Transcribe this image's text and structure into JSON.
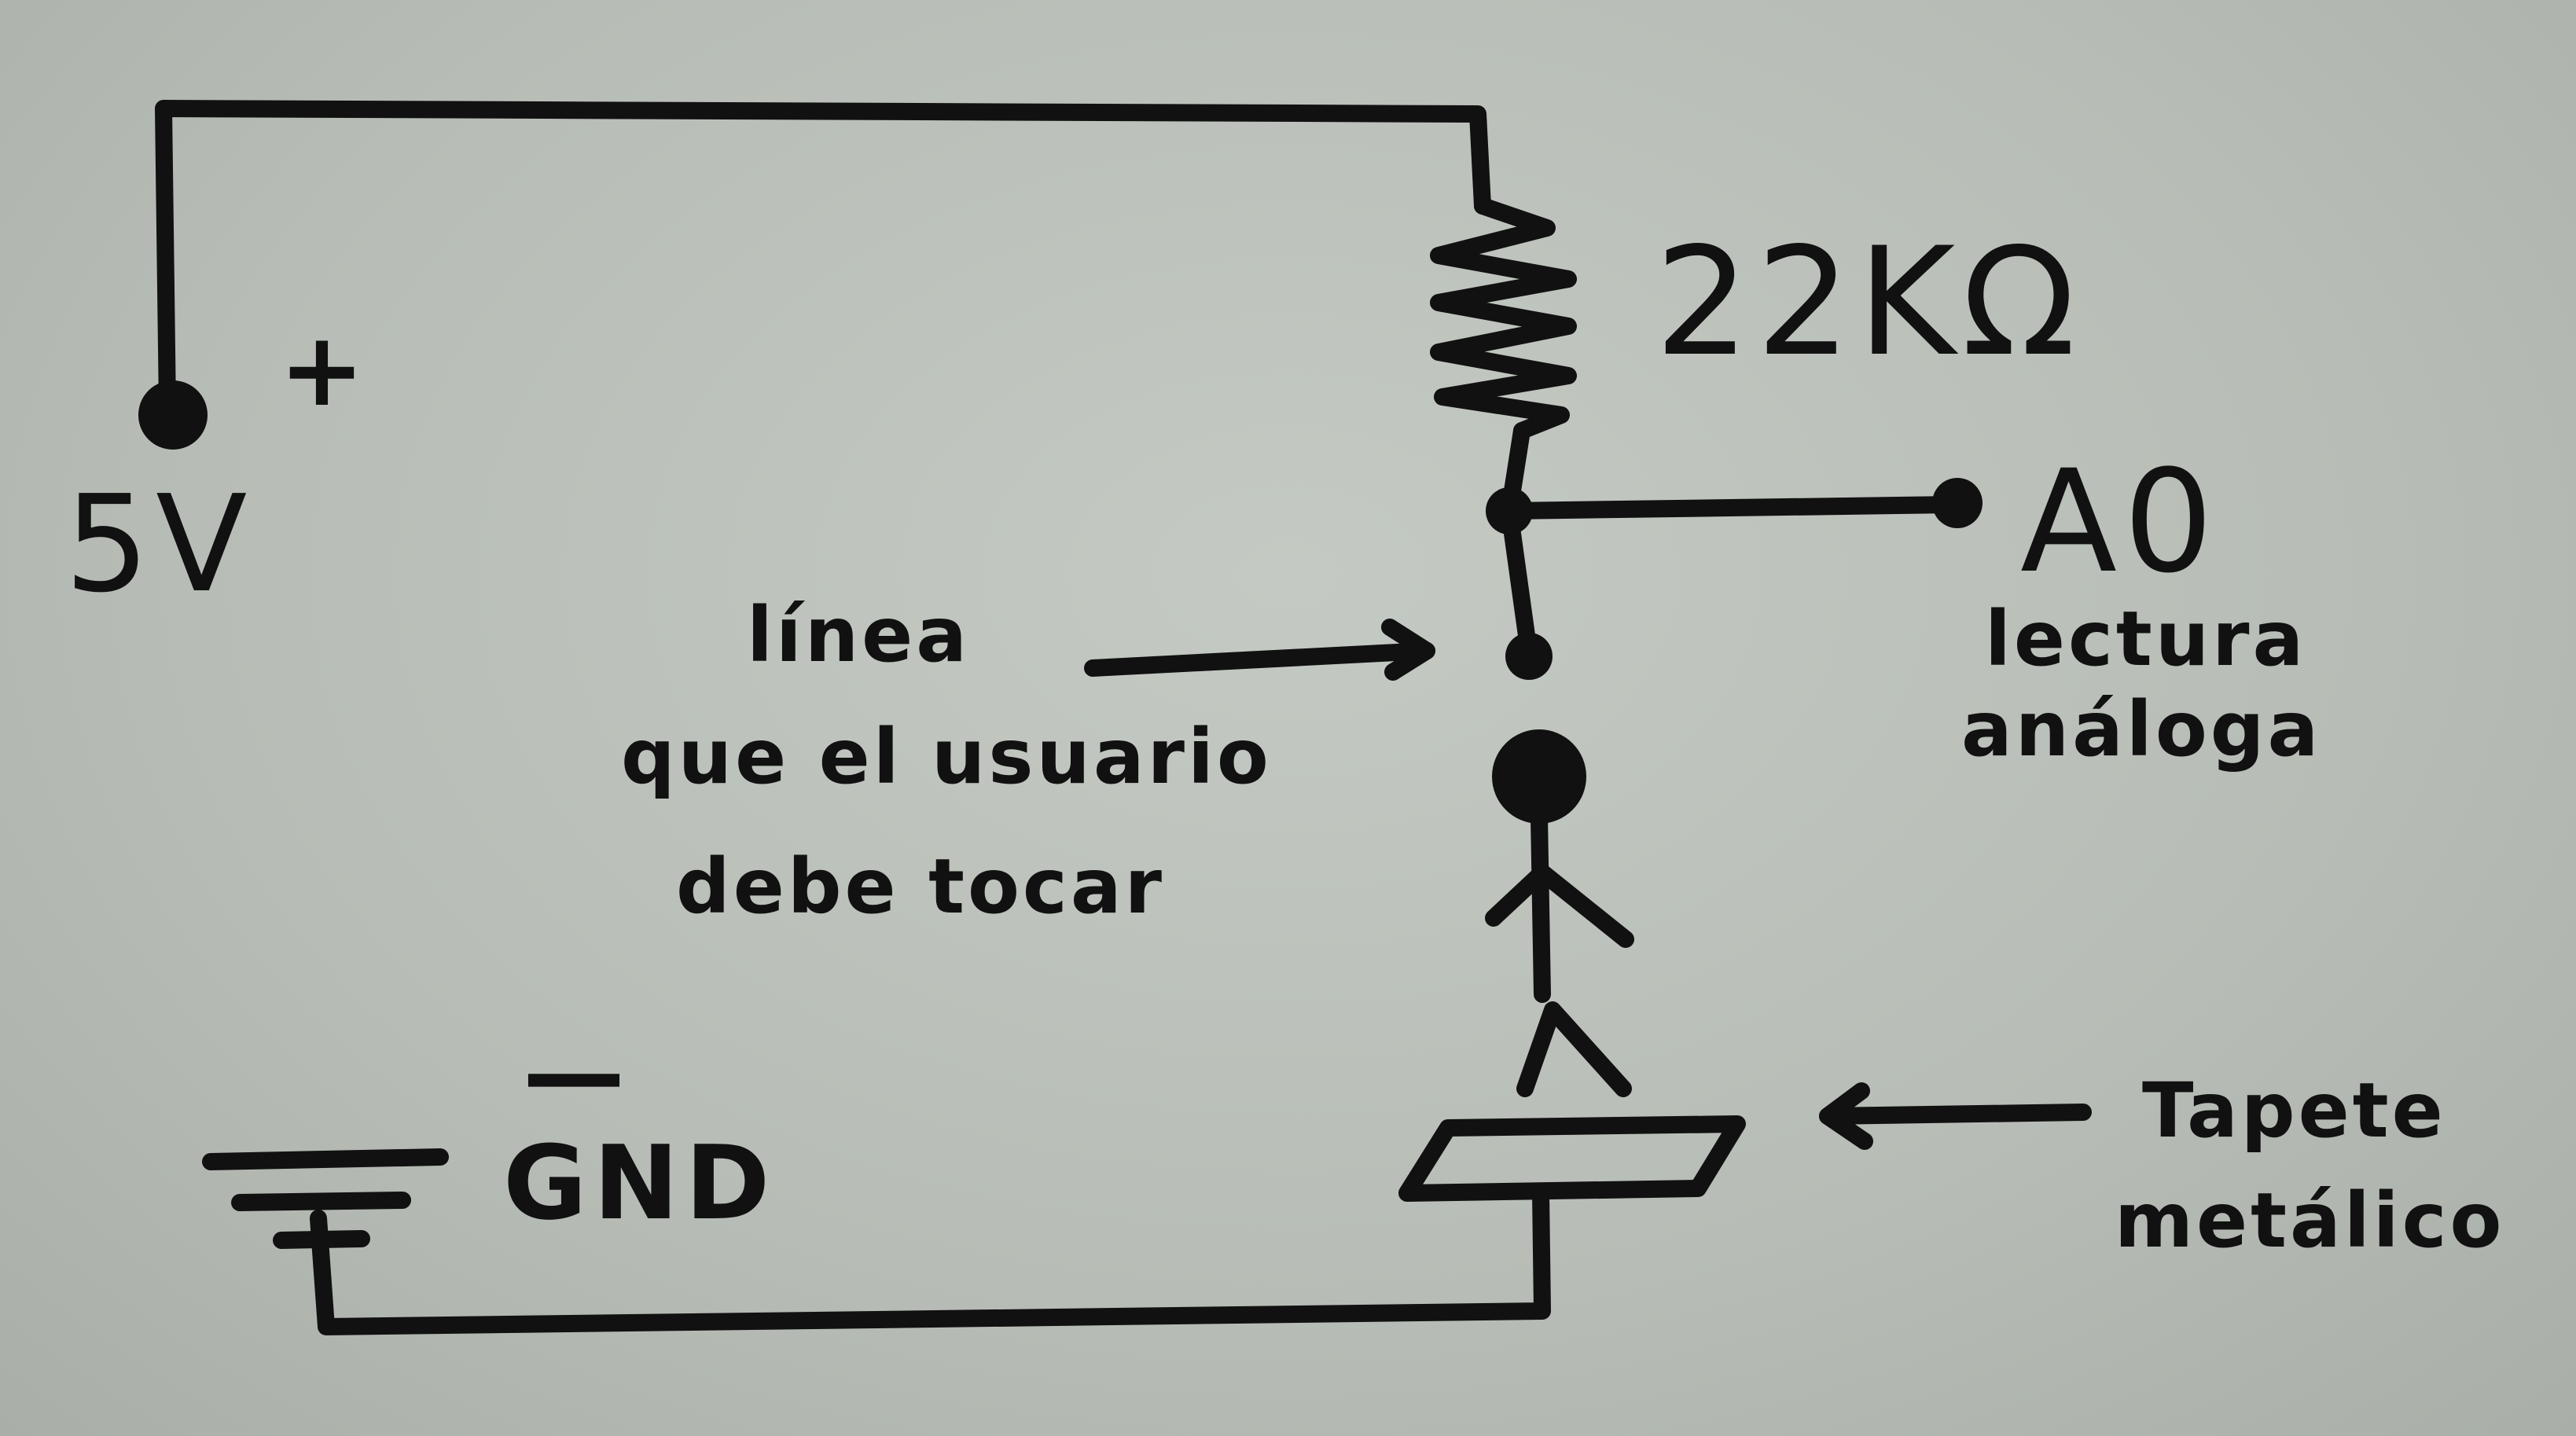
{
  "diagram": {
    "supply_label": "5V",
    "plus_sign": "+",
    "minus_sign": "—",
    "ground_label": "GND",
    "resistor_label": "22KΩ",
    "output_label": "A0",
    "output_note": [
      "lectura",
      "análoga"
    ],
    "touch_note": [
      "línea",
      "que el usuario",
      "debe tocar"
    ],
    "mat_note": [
      "Tapete",
      "metálico"
    ],
    "colors": {
      "ink": "#111111",
      "paper": "#bcc2bb"
    }
  }
}
